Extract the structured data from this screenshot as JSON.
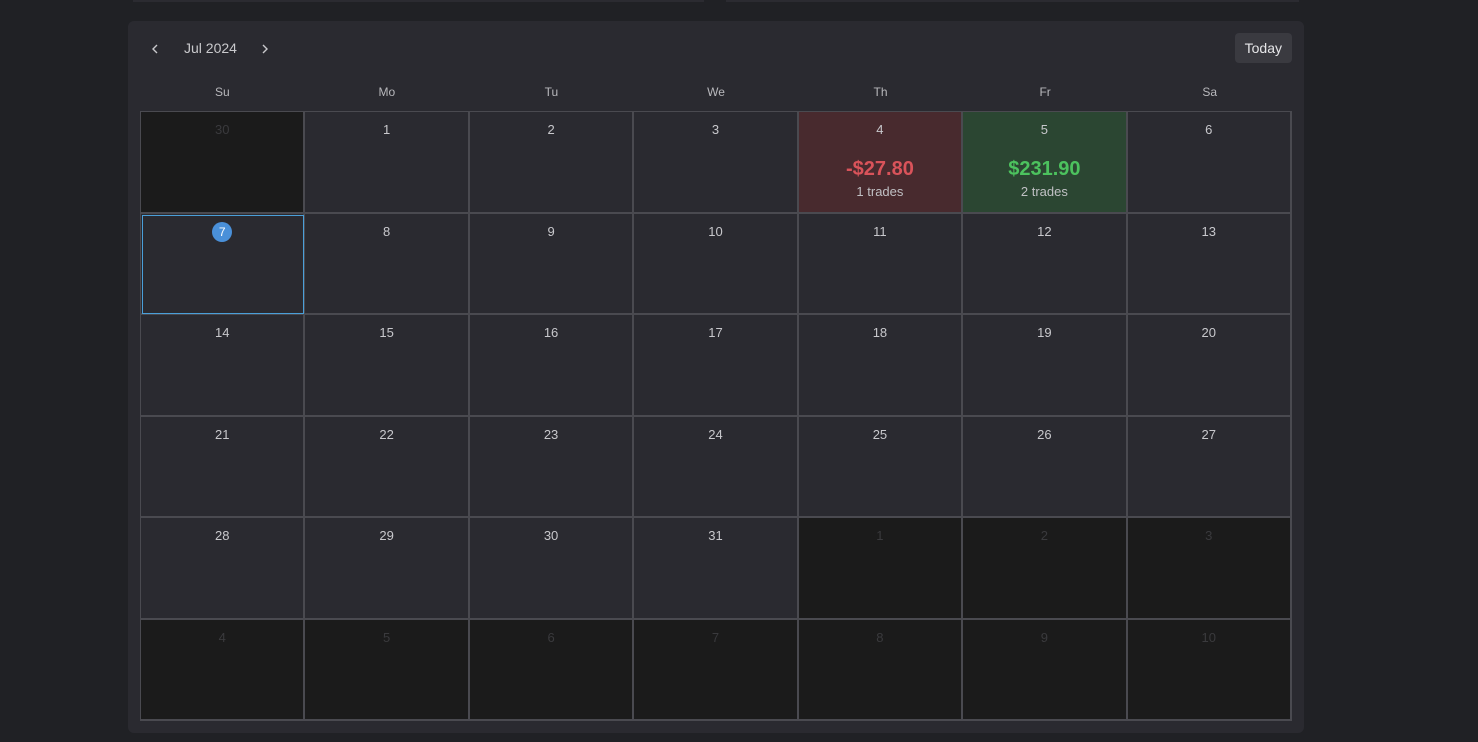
{
  "calendar": {
    "month_label": "Jul 2024",
    "today_button": "Today",
    "weekdays": [
      "Su",
      "Mo",
      "Tu",
      "We",
      "Th",
      "Fr",
      "Sa"
    ],
    "days": [
      {
        "n": "30",
        "other": true
      },
      {
        "n": "1"
      },
      {
        "n": "2"
      },
      {
        "n": "3"
      },
      {
        "n": "4",
        "pnl": "-$27.80",
        "trades": "1 trades",
        "kind": "loss"
      },
      {
        "n": "5",
        "pnl": "$231.90",
        "trades": "2 trades",
        "kind": "gain"
      },
      {
        "n": "6"
      },
      {
        "n": "7",
        "today": true
      },
      {
        "n": "8"
      },
      {
        "n": "9"
      },
      {
        "n": "10"
      },
      {
        "n": "11"
      },
      {
        "n": "12"
      },
      {
        "n": "13"
      },
      {
        "n": "14"
      },
      {
        "n": "15"
      },
      {
        "n": "16"
      },
      {
        "n": "17"
      },
      {
        "n": "18"
      },
      {
        "n": "19"
      },
      {
        "n": "20"
      },
      {
        "n": "21"
      },
      {
        "n": "22"
      },
      {
        "n": "23"
      },
      {
        "n": "24"
      },
      {
        "n": "25"
      },
      {
        "n": "26"
      },
      {
        "n": "27"
      },
      {
        "n": "28"
      },
      {
        "n": "29"
      },
      {
        "n": "30"
      },
      {
        "n": "31"
      },
      {
        "n": "1",
        "other": true
      },
      {
        "n": "2",
        "other": true
      },
      {
        "n": "3",
        "other": true
      },
      {
        "n": "4",
        "other": true
      },
      {
        "n": "5",
        "other": true
      },
      {
        "n": "6",
        "other": true
      },
      {
        "n": "7",
        "other": true
      },
      {
        "n": "8",
        "other": true
      },
      {
        "n": "9",
        "other": true
      },
      {
        "n": "10",
        "other": true
      }
    ]
  },
  "colors": {
    "loss": "#d9535a",
    "gain": "#4cc25e",
    "today_accent": "#4a90d9"
  },
  "icons": {
    "prev": "chevron-left-icon",
    "next": "chevron-right-icon"
  }
}
